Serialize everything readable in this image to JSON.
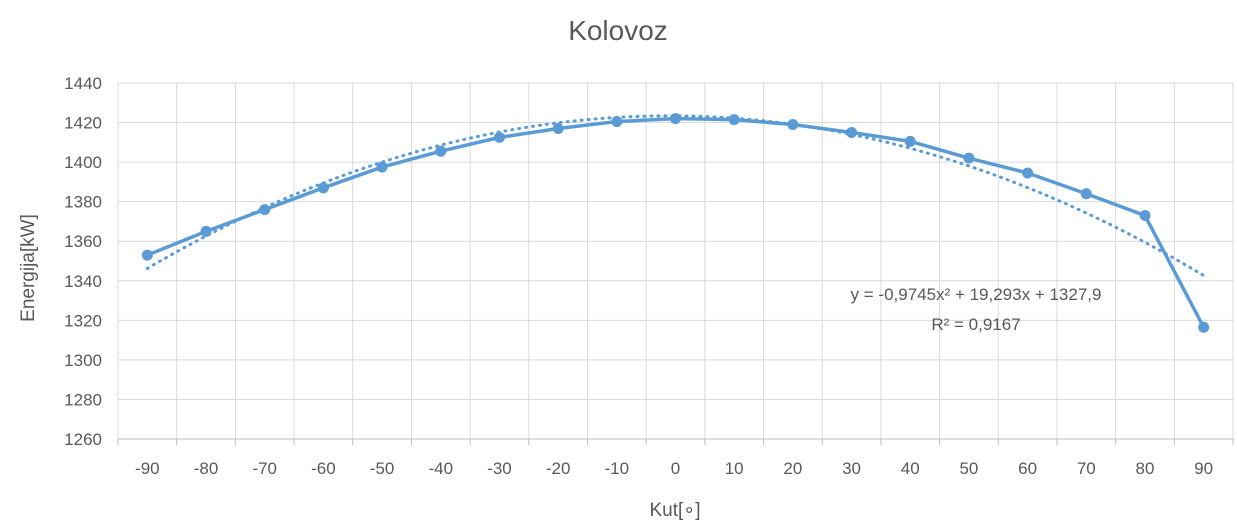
{
  "chart_data": {
    "type": "line",
    "title": "Kolovoz",
    "xlabel": "Kut[∘]",
    "ylabel": "Energija[kW]",
    "categories": [
      "-90",
      "-80",
      "-70",
      "-60",
      "-50",
      "-40",
      "-30",
      "-20",
      "-10",
      "0",
      "10",
      "20",
      "30",
      "40",
      "50",
      "60",
      "70",
      "80",
      "90"
    ],
    "ylim": [
      1260,
      1440
    ],
    "yticks": [
      "1260",
      "1280",
      "1300",
      "1320",
      "1340",
      "1360",
      "1380",
      "1400",
      "1420",
      "1440"
    ],
    "grid": true,
    "legend": "none",
    "series": [
      {
        "values": [
          1353,
          1365,
          1376,
          1387,
          1397.5,
          1405.5,
          1412.5,
          1417,
          1420.5,
          1422,
          1421.5,
          1419,
          1415,
          1410.5,
          1402,
          1394.5,
          1384,
          1373,
          1316.5
        ],
        "color": "#5B9BD5",
        "style": "solid-with-markers"
      }
    ],
    "trendline": {
      "kind": "polynomial-2",
      "coefficients": {
        "a": -0.9745,
        "b": 19.293,
        "c": 1327.9
      },
      "color": "#5B9BD5",
      "style": "dotted",
      "equation_label": "y = -0,9745x² + 19,293x + 1327,9",
      "r2_label": "R² = 0,9167"
    }
  }
}
